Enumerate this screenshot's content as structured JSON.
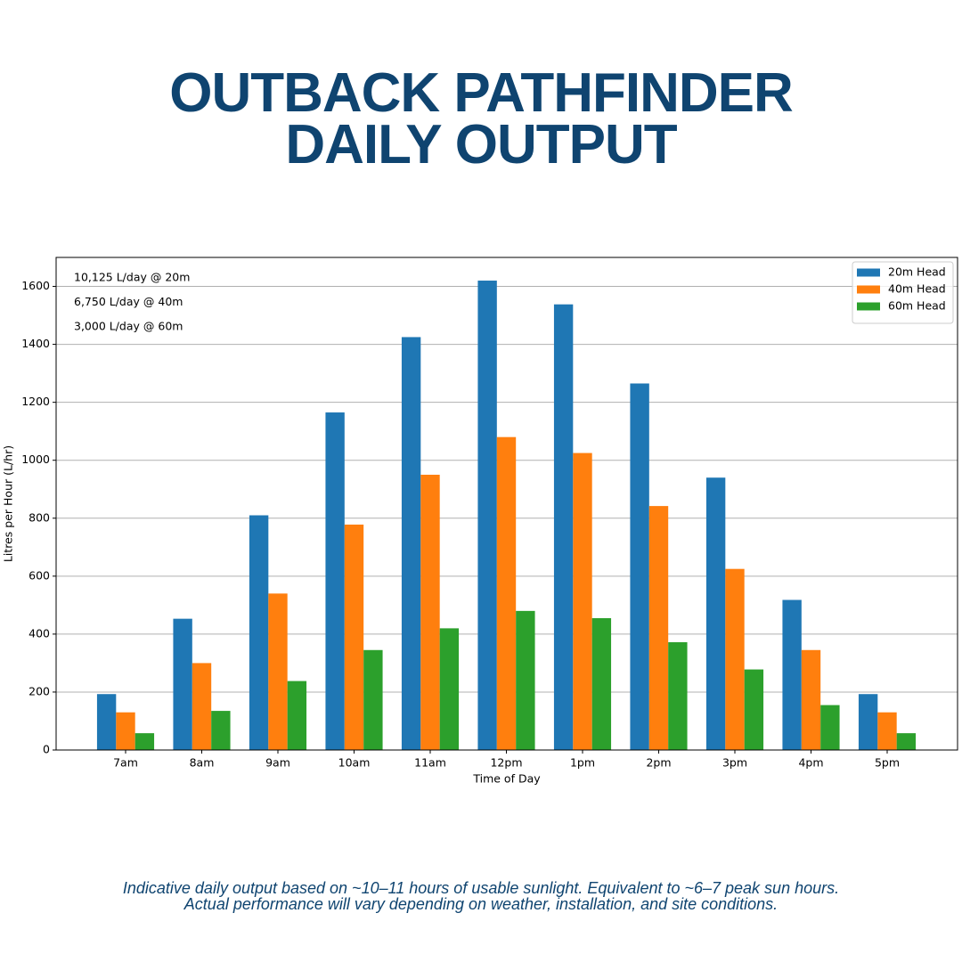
{
  "chart_data": {
    "type": "bar",
    "title": "OUTBACK PATHFINDER DAILY OUTPUT",
    "xlabel": "Time of Day",
    "ylabel": "Litres per Hour (L/hr)",
    "categories": [
      "7am",
      "8am",
      "9am",
      "10am",
      "11am",
      "12pm",
      "1pm",
      "2pm",
      "3pm",
      "4pm",
      "5pm"
    ],
    "series": [
      {
        "name": "20m Head",
        "color": "#1f77b4",
        "values": [
          193,
          453,
          810,
          1165,
          1425,
          1620,
          1538,
          1265,
          940,
          518,
          193
        ]
      },
      {
        "name": "40m Head",
        "color": "#ff7f0e",
        "values": [
          130,
          300,
          540,
          778,
          950,
          1080,
          1025,
          842,
          625,
          345,
          130
        ]
      },
      {
        "name": "60m Head",
        "color": "#2ca02c",
        "values": [
          58,
          135,
          238,
          345,
          420,
          480,
          455,
          372,
          278,
          155,
          58
        ]
      }
    ],
    "ylim": [
      0,
      1700
    ],
    "yticks": [
      0,
      200,
      400,
      600,
      800,
      1000,
      1200,
      1400,
      1600
    ],
    "grid": true,
    "legend": "upper right",
    "annotations": [
      "10,125 L/day @ 20m",
      "6,750 L/day @ 40m",
      "3,000 L/day @ 60m"
    ]
  },
  "footnote": [
    "Indicative daily output based on ~10–11 hours of usable sunlight. Equivalent to ~6–7 peak sun hours.",
    "Actual performance will vary depending on weather, installation, and site conditions."
  ]
}
